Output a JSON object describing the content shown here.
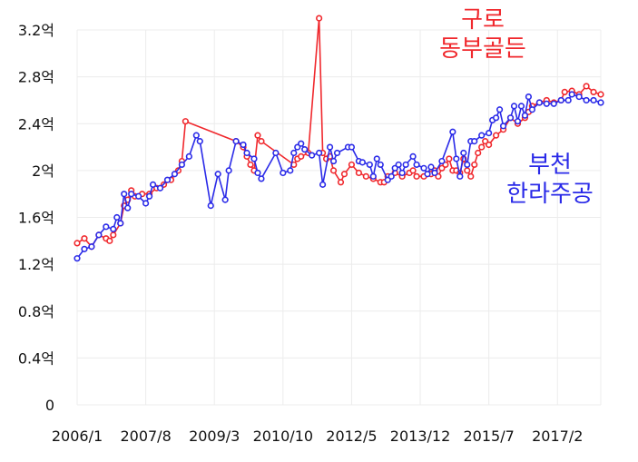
{
  "chart_data": {
    "type": "line",
    "xlim": [
      "2006/1",
      "2018/2"
    ],
    "xticks": [
      "2006/1",
      "2007/8",
      "2009/3",
      "2010/10",
      "2012/5",
      "2013/12",
      "2015/7",
      "2017/2"
    ],
    "ylim": [
      0,
      3.2
    ],
    "yticks": [
      0,
      {
        "value": 0.4,
        "label": "0.4억"
      },
      {
        "value": 0.8,
        "label": "0.8억"
      },
      {
        "value": 1.2,
        "label": "1.2억"
      },
      {
        "value": 1.6,
        "label": "1.6억"
      },
      {
        "value": 2,
        "label": "2억"
      },
      {
        "value": 2.4,
        "label": "2.4억"
      },
      {
        "value": 2.8,
        "label": "2.8억"
      },
      {
        "value": 3.2,
        "label": "3.2억"
      }
    ],
    "grid": true,
    "series": [
      {
        "name": "구로 동부골든",
        "color": "#f0282d",
        "x": [
          "2006/1",
          "2006/3",
          "2006/5",
          "2006/7",
          "2006/9",
          "2006/10",
          "2006/11",
          "2007/1",
          "2007/2",
          "2007/3",
          "2007/4",
          "2007/5",
          "2007/7",
          "2007/9",
          "2007/11",
          "2008/1",
          "2008/3",
          "2008/5",
          "2008/6",
          "2008/7",
          "2009/9",
          "2009/11",
          "2009/12",
          "2010/1",
          "2010/2",
          "2010/3",
          "2010/4",
          "2011/1",
          "2011/2",
          "2011/3",
          "2011/5",
          "2011/8",
          "2011/9",
          "2011/10",
          "2011/11",
          "2011/12",
          "2012/2",
          "2012/3",
          "2012/5",
          "2012/7",
          "2012/9",
          "2012/11",
          "2013/1",
          "2013/2",
          "2013/3",
          "2013/5",
          "2013/7",
          "2013/9",
          "2013/10",
          "2013/11",
          "2014/1",
          "2014/3",
          "2014/4",
          "2014/5",
          "2014/6",
          "2014/7",
          "2014/8",
          "2014/9",
          "2014/10",
          "2014/11",
          "2014/12",
          "2015/1",
          "2015/2",
          "2015/3",
          "2015/4",
          "2015/5",
          "2015/6",
          "2015/7",
          "2015/9",
          "2015/11",
          "2016/1",
          "2016/3",
          "2016/5",
          "2016/6",
          "2016/7",
          "2016/9",
          "2016/11",
          "2017/1",
          "2017/3",
          "2017/4",
          "2017/6",
          "2017/8",
          "2017/10",
          "2017/12",
          "2018/2"
        ],
        "values": [
          1.38,
          1.42,
          1.35,
          1.45,
          1.42,
          1.4,
          1.45,
          1.55,
          1.7,
          1.75,
          1.83,
          1.78,
          1.8,
          1.8,
          1.85,
          1.88,
          1.92,
          2.0,
          2.08,
          2.42,
          2.25,
          2.2,
          2.12,
          2.05,
          2.0,
          2.3,
          2.25,
          2.05,
          2.1,
          2.12,
          2.15,
          3.3,
          2.15,
          2.1,
          2.12,
          2.0,
          1.9,
          1.97,
          2.05,
          1.98,
          1.95,
          1.93,
          1.9,
          1.9,
          1.95,
          1.98,
          1.95,
          1.98,
          2.0,
          1.95,
          1.95,
          1.97,
          2.0,
          1.95,
          2.02,
          2.05,
          2.1,
          2.0,
          2.0,
          1.98,
          2.1,
          2.0,
          1.95,
          2.05,
          2.15,
          2.2,
          2.25,
          2.22,
          2.3,
          2.35,
          2.45,
          2.4,
          2.45,
          2.5,
          2.55,
          2.58,
          2.6,
          2.58,
          2.6,
          2.67,
          2.68,
          2.65,
          2.72,
          2.67,
          2.65
        ]
      },
      {
        "name": "부천 한라주공",
        "color": "#2a2ae8",
        "x": [
          "2006/1",
          "2006/3",
          "2006/5",
          "2006/7",
          "2006/9",
          "2006/11",
          "2006/12",
          "2007/1",
          "2007/2",
          "2007/3",
          "2007/4",
          "2007/6",
          "2007/8",
          "2007/9",
          "2007/10",
          "2007/12",
          "2008/2",
          "2008/4",
          "2008/6",
          "2008/8",
          "2008/10",
          "2008/11",
          "2009/2",
          "2009/4",
          "2009/6",
          "2009/7",
          "2009/9",
          "2009/11",
          "2009/12",
          "2010/2",
          "2010/3",
          "2010/4",
          "2010/8",
          "2010/10",
          "2010/12",
          "2011/1",
          "2011/2",
          "2011/3",
          "2011/4",
          "2011/6",
          "2011/8",
          "2011/9",
          "2011/11",
          "2011/12",
          "2012/1",
          "2012/4",
          "2012/5",
          "2012/7",
          "2012/8",
          "2012/10",
          "2012/11",
          "2012/12",
          "2013/1",
          "2013/3",
          "2013/4",
          "2013/5",
          "2013/6",
          "2013/7",
          "2013/8",
          "2013/10",
          "2013/11",
          "2014/1",
          "2014/2",
          "2014/3",
          "2014/4",
          "2014/6",
          "2014/9",
          "2014/10",
          "2014/11",
          "2014/12",
          "2015/1",
          "2015/2",
          "2015/3",
          "2015/5",
          "2015/7",
          "2015/8",
          "2015/9",
          "2015/10",
          "2015/11",
          "2016/1",
          "2016/2",
          "2016/3",
          "2016/4",
          "2016/5",
          "2016/6",
          "2016/7",
          "2016/9",
          "2016/11",
          "2017/1",
          "2017/3",
          "2017/5",
          "2017/6",
          "2017/8",
          "2017/10",
          "2017/12",
          "2018/2"
        ],
        "values": [
          1.25,
          1.33,
          1.35,
          1.45,
          1.52,
          1.5,
          1.6,
          1.55,
          1.8,
          1.68,
          1.8,
          1.78,
          1.72,
          1.78,
          1.88,
          1.85,
          1.92,
          1.97,
          2.05,
          2.12,
          2.3,
          2.25,
          1.7,
          1.97,
          1.75,
          2.0,
          2.25,
          2.22,
          2.15,
          2.1,
          1.98,
          1.93,
          2.15,
          1.98,
          2.0,
          2.15,
          2.2,
          2.23,
          2.18,
          2.13,
          2.15,
          1.88,
          2.2,
          2.08,
          2.15,
          2.2,
          2.2,
          2.08,
          2.07,
          2.05,
          1.95,
          2.1,
          2.05,
          1.92,
          1.95,
          2.02,
          2.05,
          1.98,
          2.05,
          2.12,
          2.05,
          2.02,
          1.97,
          2.03,
          1.98,
          2.08,
          2.33,
          2.1,
          1.95,
          2.15,
          2.05,
          2.25,
          2.25,
          2.3,
          2.32,
          2.43,
          2.45,
          2.52,
          2.38,
          2.45,
          2.55,
          2.42,
          2.55,
          2.47,
          2.63,
          2.52,
          2.58,
          2.57,
          2.57,
          2.6,
          2.6,
          2.65,
          2.63,
          2.6,
          2.6,
          2.58
        ]
      }
    ]
  }
}
